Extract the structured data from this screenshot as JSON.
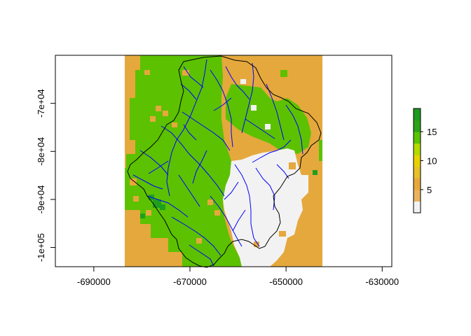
{
  "map": {
    "x_ticks": [
      {
        "value": -690000,
        "label": "-690000"
      },
      {
        "value": -670000,
        "label": "-670000"
      },
      {
        "value": -650000,
        "label": "-650000"
      },
      {
        "value": -630000,
        "label": "-630000"
      }
    ],
    "y_ticks": [
      {
        "value": -70000,
        "label": "-7e+04"
      },
      {
        "value": -80000,
        "label": "-8e+04"
      },
      {
        "value": -90000,
        "label": "-9e+04"
      },
      {
        "value": -100000,
        "label": "-1e+05"
      }
    ],
    "xlim": [
      -698000,
      -628000
    ],
    "ylim": [
      -104000,
      -60000
    ],
    "raster_extent": {
      "xmin": -683600,
      "xmax": -642300,
      "ymin": -103800,
      "ymax": -60000
    },
    "legend": {
      "ticks": [
        {
          "value": 5,
          "label": "5"
        },
        {
          "value": 10,
          "label": "10"
        },
        {
          "value": 15,
          "label": "15"
        }
      ],
      "range": [
        1,
        19
      ],
      "palette": [
        "#f2f2f2",
        "#ebb25e",
        "#e6a83c",
        "#e6c12a",
        "#e6d200",
        "#b4da00",
        "#5bc500",
        "#2aa418",
        "#1b9a1f"
      ]
    },
    "colors": {
      "background": "#ffffff",
      "forest": "#5cc100",
      "agriculture": "#e5a83d",
      "urban": "#f2f2f2",
      "dark_forest": "#1e9f1f",
      "streams": "#0000ff",
      "boundary": "#000000"
    }
  }
}
